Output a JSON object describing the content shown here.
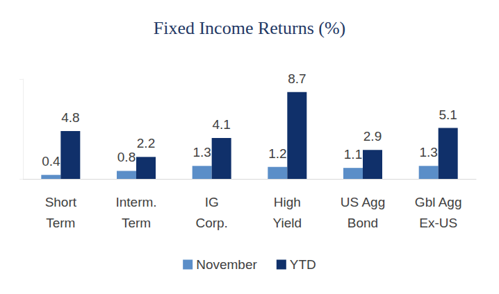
{
  "chart_data": {
    "type": "bar",
    "title": "Fixed Income Returns (%)",
    "categories": [
      "Short\nTerm",
      "Interm.\nTerm",
      "IG\nCorp.",
      "High\nYield",
      "US Agg\nBond",
      "Gbl Agg\nEx-US"
    ],
    "series": [
      {
        "name": "November",
        "color": "#5b8ec8",
        "values": [
          0.4,
          0.8,
          1.3,
          1.2,
          1.1,
          1.3
        ]
      },
      {
        "name": "YTD",
        "color": "#10306a",
        "values": [
          4.8,
          2.2,
          4.1,
          8.7,
          2.9,
          5.1
        ]
      }
    ],
    "ylim": [
      0,
      10
    ],
    "yticks": [
      0,
      10
    ],
    "grid": false,
    "legend": "bottom",
    "data_labels": true,
    "tick_labels": "x"
  }
}
